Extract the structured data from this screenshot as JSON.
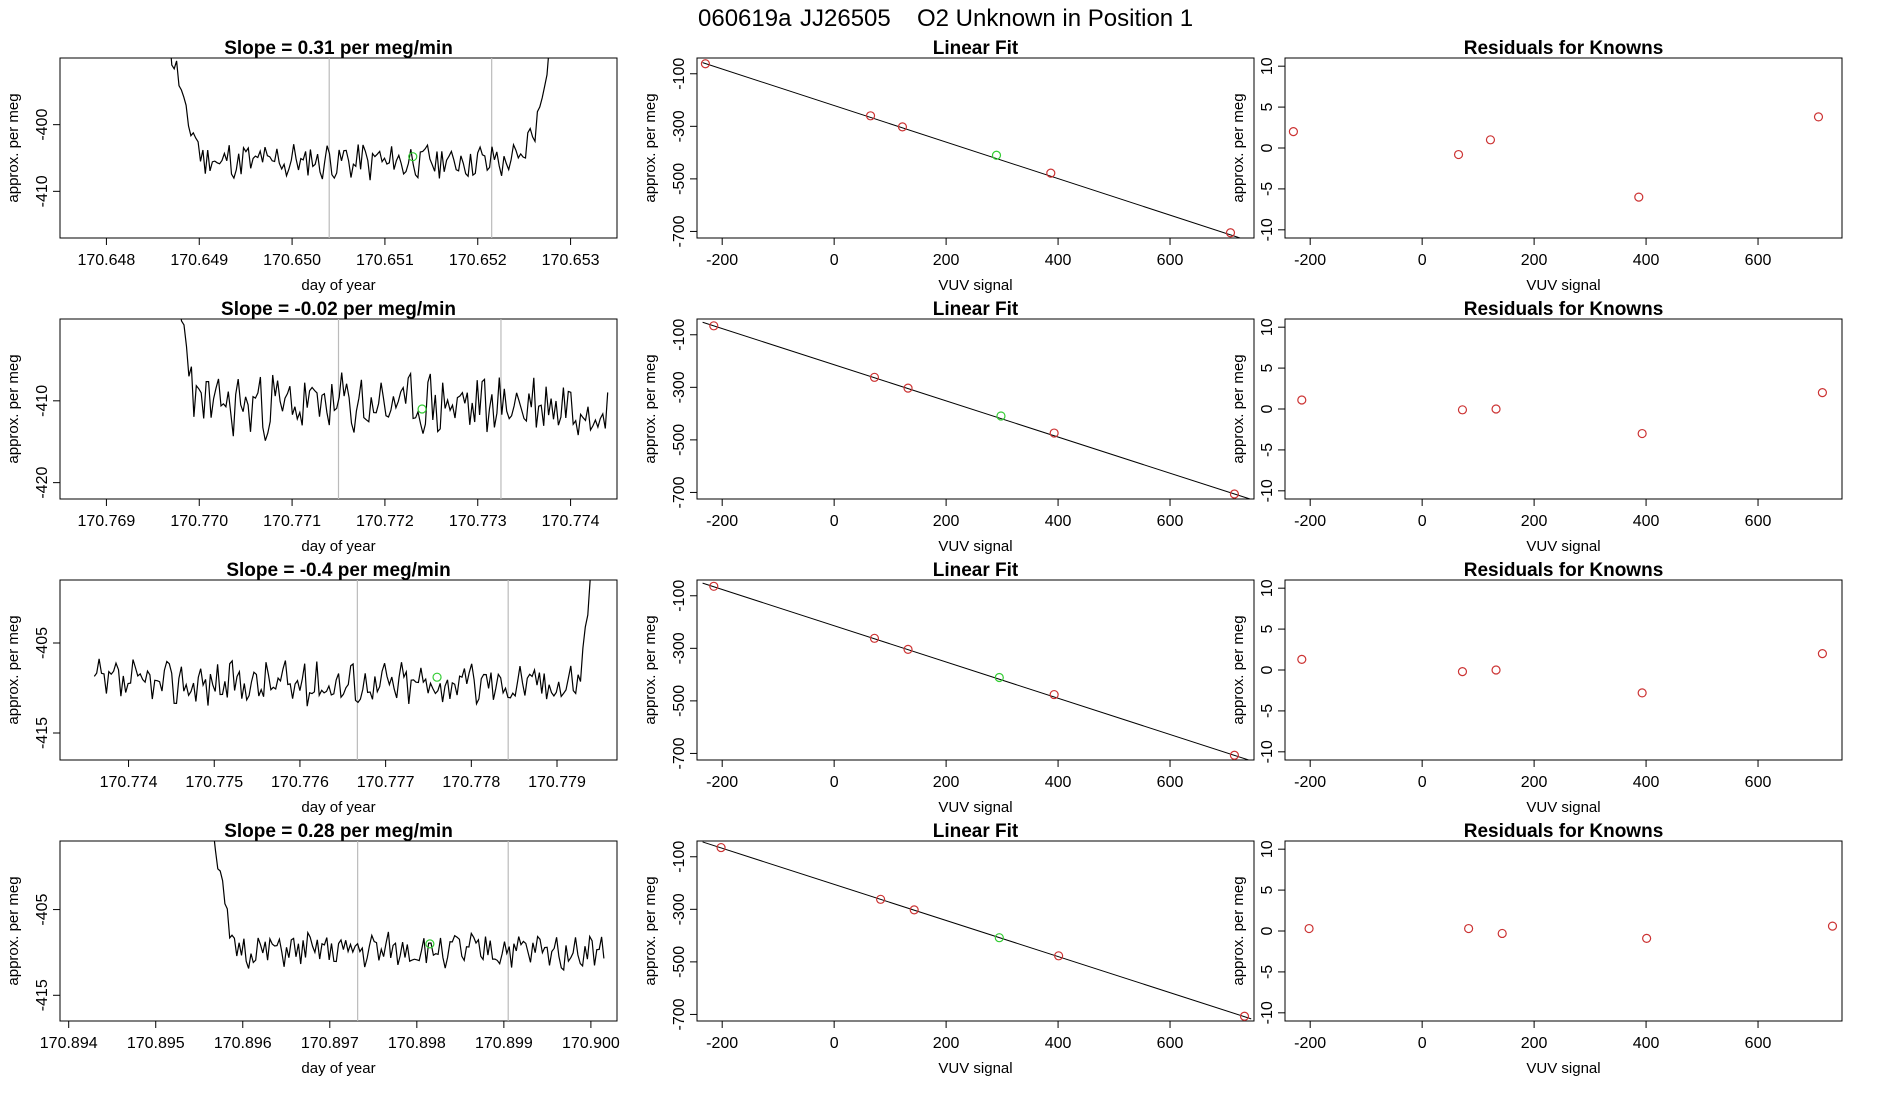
{
  "page": {
    "title_date": "060619a",
    "title_tank": "JJ26505",
    "title_desc": "O2 Unknown in Position  1"
  },
  "colors": {
    "trace": "#000000",
    "marker_known": "#cc3333",
    "marker_unknown": "#33cc33",
    "vline": "#bbbbbb",
    "fit_line": "#000000"
  },
  "chart_data": [
    {
      "type": "line",
      "row": 1,
      "title": "Slope =  0.31  per meg/min",
      "xlabel": "day of year",
      "ylabel": "approx. per meg",
      "xlim": [
        170.6475,
        170.6535
      ],
      "ylim": [
        -417,
        -390
      ],
      "xticks": [
        "170.648",
        "170.649",
        "170.650",
        "170.651",
        "170.652",
        "170.653"
      ],
      "yticks": [
        "-410",
        "-400"
      ],
      "vlines": [
        170.6504,
        170.65215
      ],
      "marker": [
        170.6513,
        -404.8
      ],
      "segment": {
        "x_start": 170.64855,
        "x_end": 170.6529,
        "n": 170,
        "base": -405.5,
        "amp": 2.4,
        "ramp_start": 0.0006,
        "ramp_end": 0.0005,
        "seed": 11
      }
    },
    {
      "type": "line",
      "row": 2,
      "title": "Slope =  -0.02  per meg/min",
      "xlabel": "day of year",
      "ylabel": "approx. per meg",
      "xlim": [
        170.7685,
        170.7745
      ],
      "ylim": [
        -422,
        -400
      ],
      "xticks": [
        "170.769",
        "170.770",
        "170.771",
        "170.772",
        "170.773",
        "170.774"
      ],
      "yticks": [
        "-420",
        "-410"
      ],
      "vlines": [
        170.7715,
        170.77325
      ],
      "marker": [
        170.7724,
        -411.0
      ],
      "segment": {
        "x_start": 170.76965,
        "x_end": 170.7744,
        "n": 180,
        "base": -410.5,
        "amp": 3.3,
        "ramp_start": 0.0004,
        "ramp_end": 0,
        "seed": 23
      }
    },
    {
      "type": "line",
      "row": 3,
      "title": "Slope =  -0.4  per meg/min",
      "xlabel": "day of year",
      "ylabel": "approx. per meg",
      "xlim": [
        170.7732,
        170.7797
      ],
      "ylim": [
        -418,
        -398
      ],
      "xticks": [
        "170.774",
        "170.775",
        "170.776",
        "170.777",
        "170.778",
        "170.779"
      ],
      "yticks": [
        "-415",
        "-405"
      ],
      "vlines": [
        170.77667,
        170.77843
      ],
      "marker": [
        170.7776,
        -408.8
      ],
      "segment": {
        "x_start": 170.7736,
        "x_end": 170.7795,
        "n": 210,
        "base": -409.5,
        "amp": 2.1,
        "ramp_start": 0,
        "ramp_end": 0.0003,
        "seed": 37
      }
    },
    {
      "type": "line",
      "row": 4,
      "title": "Slope =  0.28  per meg/min",
      "xlabel": "day of year",
      "ylabel": "approx. per meg",
      "xlim": [
        170.8939,
        170.9003
      ],
      "ylim": [
        -418,
        -397
      ],
      "xticks": [
        "170.894",
        "170.895",
        "170.896",
        "170.897",
        "170.898",
        "170.899",
        "170.900"
      ],
      "yticks": [
        "-415",
        "-405"
      ],
      "vlines": [
        170.89732,
        170.89905
      ],
      "marker": [
        170.89815,
        -409.0
      ],
      "segment": {
        "x_start": 170.89555,
        "x_end": 170.90015,
        "n": 170,
        "base": -409.8,
        "amp": 1.7,
        "ramp_start": 0.0004,
        "ramp_end": 0,
        "seed": 51
      }
    },
    {
      "type": "scatter",
      "row": 1,
      "title": "Linear Fit",
      "xlabel": "VUV signal",
      "ylabel": "approx. per meg",
      "xlim": [
        -245,
        750
      ],
      "ylim": [
        -725,
        -40
      ],
      "xticks": [
        -200,
        0,
        200,
        400,
        600
      ],
      "yticks": [
        -100,
        -300,
        -500,
        -700
      ],
      "knowns": [
        [
          -230,
          -62
        ],
        [
          65,
          -260
        ],
        [
          122,
          -302
        ],
        [
          387,
          -478
        ],
        [
          708,
          -705
        ]
      ],
      "unknown": [
        290,
        -410
      ],
      "fit": {
        "slope": -0.695,
        "intercept": -221.0,
        "x0": -235,
        "x1": 745
      }
    },
    {
      "type": "scatter",
      "row": 2,
      "title": "Linear Fit",
      "xlabel": "VUV signal",
      "ylabel": "approx. per meg",
      "xlim": [
        -245,
        750
      ],
      "ylim": [
        -725,
        -40
      ],
      "xticks": [
        -200,
        0,
        200,
        400,
        600
      ],
      "yticks": [
        -100,
        -300,
        -500,
        -700
      ],
      "knowns": [
        [
          -215,
          -66
        ],
        [
          72,
          -262
        ],
        [
          132,
          -303
        ],
        [
          393,
          -474
        ],
        [
          715,
          -706
        ]
      ],
      "unknown": [
        298,
        -409
      ],
      "fit": {
        "slope": -0.688,
        "intercept": -214.0,
        "x0": -235,
        "x1": 745
      }
    },
    {
      "type": "scatter",
      "row": 3,
      "title": "Linear Fit",
      "xlabel": "VUV signal",
      "ylabel": "approx. per meg",
      "xlim": [
        -245,
        750
      ],
      "ylim": [
        -725,
        -40
      ],
      "xticks": [
        -200,
        0,
        200,
        400,
        600
      ],
      "yticks": [
        -100,
        -300,
        -500,
        -700
      ],
      "knowns": [
        [
          -215,
          -64
        ],
        [
          72,
          -262
        ],
        [
          132,
          -304
        ],
        [
          393,
          -476
        ],
        [
          715,
          -707
        ]
      ],
      "unknown": [
        295,
        -411
      ],
      "fit": {
        "slope": -0.69,
        "intercept": -214.0,
        "x0": -235,
        "x1": 745
      }
    },
    {
      "type": "scatter",
      "row": 4,
      "title": "Linear Fit",
      "xlabel": "VUV signal",
      "ylabel": "approx. per meg",
      "xlim": [
        -245,
        750
      ],
      "ylim": [
        -725,
        -40
      ],
      "xticks": [
        -200,
        0,
        200,
        400,
        600
      ],
      "yticks": [
        -100,
        -300,
        -500,
        -700
      ],
      "knowns": [
        [
          -202,
          -65
        ],
        [
          83,
          -262
        ],
        [
          143,
          -302
        ],
        [
          401,
          -477
        ],
        [
          733,
          -707
        ]
      ],
      "unknown": [
        295,
        -408
      ],
      "fit": {
        "slope": -0.687,
        "intercept": -205.0,
        "x0": -235,
        "x1": 745
      }
    },
    {
      "type": "scatter",
      "row": 1,
      "title": "Residuals for Knowns",
      "xlabel": "VUV signal",
      "ylabel": "approx. per meg",
      "xlim": [
        -245,
        750
      ],
      "ylim": [
        -11,
        11
      ],
      "xticks": [
        -200,
        0,
        200,
        400,
        600
      ],
      "yticks": [
        -10,
        -5,
        0,
        5,
        10
      ],
      "points": [
        [
          -230,
          2.0
        ],
        [
          65,
          -0.8
        ],
        [
          122,
          1.0
        ],
        [
          387,
          -6.0
        ],
        [
          708,
          3.8
        ]
      ]
    },
    {
      "type": "scatter",
      "row": 2,
      "title": "Residuals for Knowns",
      "xlabel": "VUV signal",
      "ylabel": "approx. per meg",
      "xlim": [
        -245,
        750
      ],
      "ylim": [
        -11,
        11
      ],
      "xticks": [
        -200,
        0,
        200,
        400,
        600
      ],
      "yticks": [
        -10,
        -5,
        0,
        5,
        10
      ],
      "points": [
        [
          -215,
          1.1
        ],
        [
          72,
          -0.1
        ],
        [
          132,
          0.0
        ],
        [
          393,
          -3.0
        ],
        [
          715,
          2.0
        ]
      ]
    },
    {
      "type": "scatter",
      "row": 3,
      "title": "Residuals for Knowns",
      "xlabel": "VUV signal",
      "ylabel": "approx. per meg",
      "xlim": [
        -245,
        750
      ],
      "ylim": [
        -11,
        11
      ],
      "xticks": [
        -200,
        0,
        200,
        400,
        600
      ],
      "yticks": [
        -10,
        -5,
        0,
        5,
        10
      ],
      "points": [
        [
          -215,
          1.3
        ],
        [
          72,
          -0.2
        ],
        [
          132,
          0.0
        ],
        [
          393,
          -2.8
        ],
        [
          715,
          2.0
        ]
      ]
    },
    {
      "type": "scatter",
      "row": 4,
      "title": "Residuals for Knowns",
      "xlabel": "VUV signal",
      "ylabel": "approx. per meg",
      "xlim": [
        -245,
        750
      ],
      "ylim": [
        -11,
        11
      ],
      "xticks": [
        -200,
        0,
        200,
        400,
        600
      ],
      "yticks": [
        -10,
        -5,
        0,
        5,
        10
      ],
      "points": [
        [
          -202,
          0.3
        ],
        [
          83,
          0.3
        ],
        [
          143,
          -0.3
        ],
        [
          401,
          -0.9
        ],
        [
          733,
          0.6
        ]
      ]
    }
  ]
}
